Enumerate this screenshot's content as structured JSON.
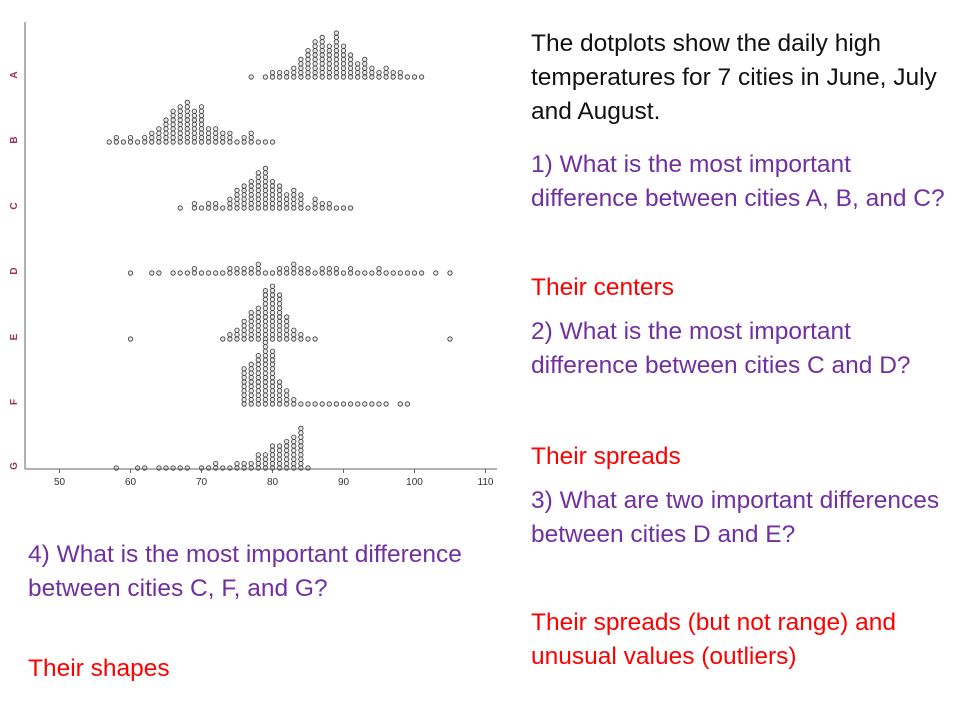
{
  "texts": {
    "intro": "The dotplots show the daily high temperatures for 7 cities in June, July and August.",
    "q1": "1) What is the most important difference between cities A, B, and C?",
    "a1": "Their centers",
    "q2": "2) What is the most important difference between cities C and D?",
    "a2": "Their spreads",
    "q3": "3) What are two important differences between cities D and E?",
    "a3": "Their spreads (but not range) and unusual values (outliers)",
    "q4": "4) What is the most important difference between cities C, F, and G?",
    "a4": "Their shapes"
  },
  "colors": {
    "question": "#7030a0",
    "answer": "#ff0000",
    "intro": "#111111",
    "city_label": "#a03060"
  },
  "chart_data": {
    "type": "scatter",
    "subtype": "dotplot",
    "title": "",
    "xlabel": "",
    "ylabel": "",
    "xlim": [
      45,
      113
    ],
    "xticks": [
      50,
      60,
      70,
      80,
      90,
      100,
      110
    ],
    "categories": [
      "A",
      "B",
      "C",
      "D",
      "E",
      "F",
      "G"
    ],
    "dot_unit": 1,
    "series": [
      {
        "name": "A",
        "dots": [
          [
            77,
            1
          ],
          [
            79,
            1
          ],
          [
            80,
            2
          ],
          [
            81,
            2
          ],
          [
            82,
            2
          ],
          [
            83,
            3
          ],
          [
            84,
            5
          ],
          [
            85,
            7
          ],
          [
            86,
            9
          ],
          [
            87,
            10
          ],
          [
            88,
            8
          ],
          [
            89,
            11
          ],
          [
            90,
            8
          ],
          [
            91,
            6
          ],
          [
            92,
            4
          ],
          [
            93,
            5
          ],
          [
            94,
            3
          ],
          [
            95,
            2
          ],
          [
            96,
            3
          ],
          [
            97,
            2
          ],
          [
            98,
            2
          ],
          [
            99,
            1
          ],
          [
            100,
            1
          ],
          [
            101,
            1
          ]
        ]
      },
      {
        "name": "B",
        "dots": [
          [
            57,
            1
          ],
          [
            58,
            2
          ],
          [
            59,
            1
          ],
          [
            60,
            2
          ],
          [
            61,
            1
          ],
          [
            62,
            2
          ],
          [
            63,
            3
          ],
          [
            64,
            4
          ],
          [
            65,
            6
          ],
          [
            66,
            8
          ],
          [
            67,
            9
          ],
          [
            68,
            10
          ],
          [
            69,
            8
          ],
          [
            70,
            9
          ],
          [
            71,
            4
          ],
          [
            72,
            4
          ],
          [
            73,
            3
          ],
          [
            74,
            3
          ],
          [
            75,
            1
          ],
          [
            76,
            2
          ],
          [
            77,
            3
          ],
          [
            78,
            1
          ],
          [
            79,
            1
          ],
          [
            80,
            1
          ]
        ]
      },
      {
        "name": "C",
        "dots": [
          [
            67,
            1
          ],
          [
            69,
            2
          ],
          [
            70,
            1
          ],
          [
            71,
            2
          ],
          [
            72,
            2
          ],
          [
            73,
            1
          ],
          [
            74,
            3
          ],
          [
            75,
            5
          ],
          [
            76,
            6
          ],
          [
            77,
            7
          ],
          [
            78,
            9
          ],
          [
            79,
            10
          ],
          [
            80,
            7
          ],
          [
            81,
            6
          ],
          [
            82,
            4
          ],
          [
            83,
            5
          ],
          [
            84,
            4
          ],
          [
            85,
            1
          ],
          [
            86,
            3
          ],
          [
            87,
            2
          ],
          [
            88,
            2
          ],
          [
            89,
            1
          ],
          [
            90,
            1
          ],
          [
            91,
            1
          ]
        ]
      },
      {
        "name": "D",
        "dots": [
          [
            60,
            1
          ],
          [
            63,
            1
          ],
          [
            64,
            1
          ],
          [
            66,
            1
          ],
          [
            67,
            1
          ],
          [
            68,
            1
          ],
          [
            69,
            2
          ],
          [
            70,
            1
          ],
          [
            71,
            1
          ],
          [
            72,
            1
          ],
          [
            73,
            1
          ],
          [
            74,
            2
          ],
          [
            75,
            2
          ],
          [
            76,
            2
          ],
          [
            77,
            2
          ],
          [
            78,
            3
          ],
          [
            79,
            1
          ],
          [
            80,
            1
          ],
          [
            81,
            2
          ],
          [
            82,
            2
          ],
          [
            83,
            3
          ],
          [
            84,
            2
          ],
          [
            85,
            2
          ],
          [
            86,
            1
          ],
          [
            87,
            2
          ],
          [
            88,
            2
          ],
          [
            89,
            2
          ],
          [
            90,
            1
          ],
          [
            91,
            2
          ],
          [
            92,
            1
          ],
          [
            93,
            1
          ],
          [
            94,
            1
          ],
          [
            95,
            2
          ],
          [
            96,
            1
          ],
          [
            97,
            1
          ],
          [
            98,
            1
          ],
          [
            99,
            1
          ],
          [
            100,
            1
          ],
          [
            101,
            1
          ],
          [
            103,
            1
          ],
          [
            105,
            1
          ]
        ]
      },
      {
        "name": "E",
        "dots": [
          [
            60,
            1
          ],
          [
            73,
            1
          ],
          [
            74,
            2
          ],
          [
            75,
            3
          ],
          [
            76,
            5
          ],
          [
            77,
            7
          ],
          [
            78,
            8
          ],
          [
            79,
            12
          ],
          [
            80,
            13
          ],
          [
            81,
            11
          ],
          [
            82,
            6
          ],
          [
            83,
            3
          ],
          [
            84,
            2
          ],
          [
            85,
            1
          ],
          [
            86,
            1
          ],
          [
            105,
            1
          ]
        ]
      },
      {
        "name": "F",
        "dots": [
          [
            76,
            9
          ],
          [
            77,
            10
          ],
          [
            78,
            12
          ],
          [
            79,
            15
          ],
          [
            80,
            13
          ],
          [
            81,
            6
          ],
          [
            82,
            4
          ],
          [
            83,
            2
          ],
          [
            84,
            1
          ],
          [
            85,
            1
          ],
          [
            86,
            1
          ],
          [
            87,
            1
          ],
          [
            88,
            1
          ],
          [
            89,
            1
          ],
          [
            90,
            1
          ],
          [
            91,
            1
          ],
          [
            92,
            1
          ],
          [
            93,
            1
          ],
          [
            94,
            1
          ],
          [
            95,
            1
          ],
          [
            96,
            1
          ],
          [
            98,
            1
          ],
          [
            99,
            1
          ]
        ]
      },
      {
        "name": "G",
        "dots": [
          [
            58,
            1
          ],
          [
            61,
            1
          ],
          [
            62,
            1
          ],
          [
            64,
            1
          ],
          [
            65,
            1
          ],
          [
            66,
            1
          ],
          [
            67,
            1
          ],
          [
            68,
            1
          ],
          [
            70,
            1
          ],
          [
            71,
            1
          ],
          [
            72,
            2
          ],
          [
            73,
            1
          ],
          [
            74,
            1
          ],
          [
            75,
            2
          ],
          [
            76,
            2
          ],
          [
            77,
            2
          ],
          [
            78,
            4
          ],
          [
            79,
            4
          ],
          [
            80,
            6
          ],
          [
            81,
            6
          ],
          [
            82,
            7
          ],
          [
            83,
            8
          ],
          [
            84,
            10
          ],
          [
            85,
            1
          ]
        ]
      }
    ]
  }
}
